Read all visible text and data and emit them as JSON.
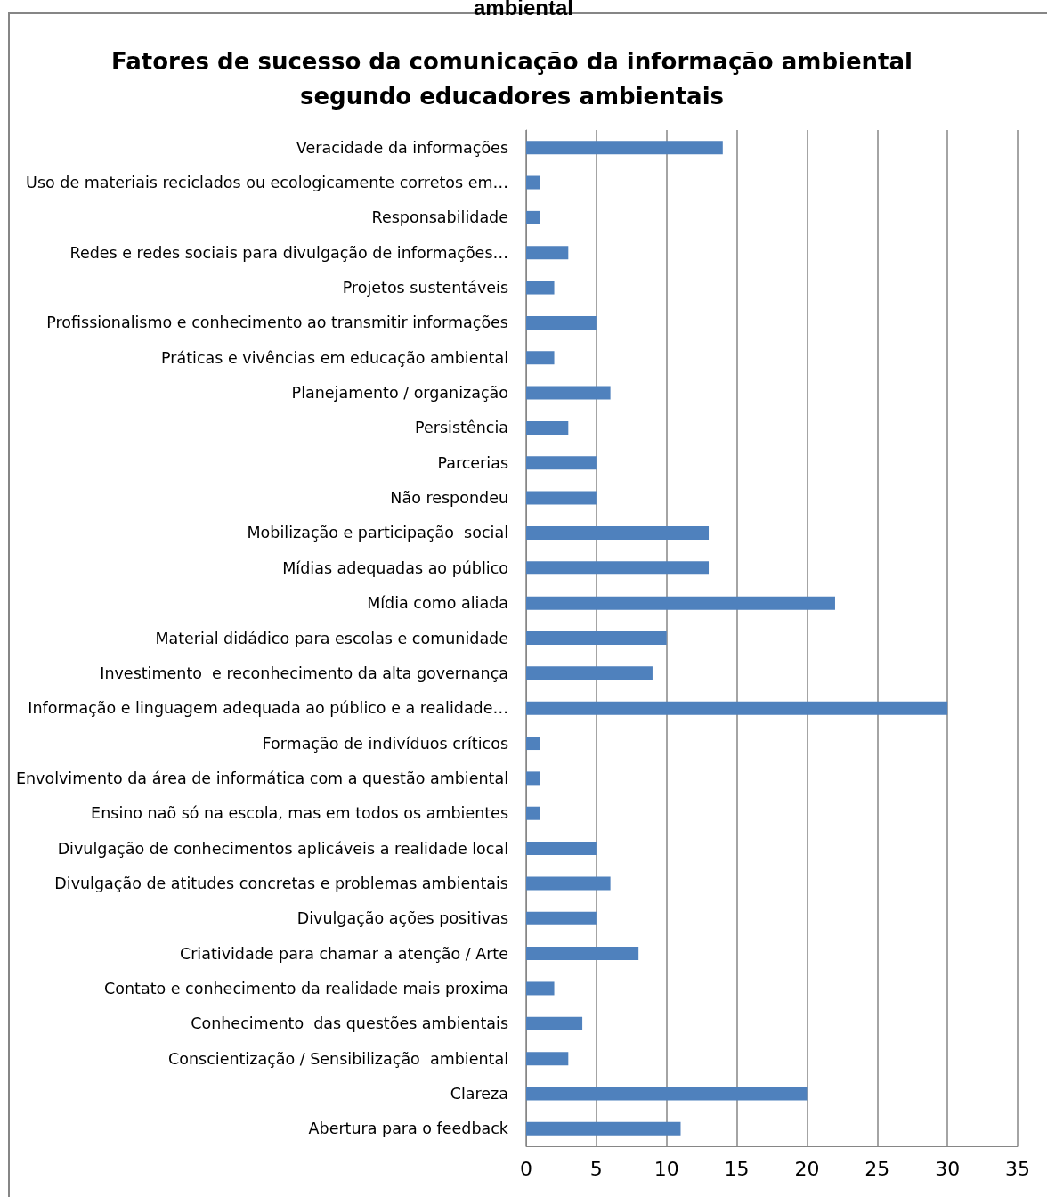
{
  "chart_data": {
    "type": "bar",
    "orientation": "horizontal",
    "title": "Fatores de sucesso da comunicação da informação ambiental\nsegundo educadores ambientais",
    "annotations": [
      "ambiental"
    ],
    "categories": [
      "Veracidade da informações",
      "Uso de materiais reciclados ou ecologicamente corretos em…",
      "Responsabilidade",
      "Redes e redes sociais para divulgação de informações…",
      "Projetos sustentáveis",
      "Profissionalismo e conhecimento ao transmitir informações",
      "Práticas e vivências em educação ambiental",
      "Planejamento / organização",
      "Persistência",
      "Parcerias",
      "Não respondeu",
      "Mobilização e participação  social",
      "Mídias adequadas ao público",
      "Mídia como aliada",
      "Material didádico para escolas e comunidade",
      "Investimento  e reconhecimento da alta governança",
      "Informação e linguagem adequada ao público e a realidade…",
      "Formação de indivíduos críticos",
      "Envolvimento da área de informática com a questão ambiental",
      "Ensino naõ só na escola, mas em todos os ambientes",
      "Divulgação de conhecimentos aplicáveis a realidade local",
      "Divulgação de atitudes concretas e problemas ambientais",
      "Divulgação ações positivas",
      "Criatividade para chamar a atenção / Arte",
      "Contato e conhecimento da realidade mais proxima",
      "Conhecimento  das questões ambientais",
      "Conscientização / Sensibilização  ambiental",
      "Clareza",
      "Abertura para o feedback"
    ],
    "values": [
      14,
      1,
      1,
      3,
      2,
      5,
      2,
      6,
      3,
      5,
      5,
      13,
      13,
      22,
      10,
      9,
      30,
      1,
      1,
      1,
      5,
      6,
      5,
      8,
      2,
      4,
      3,
      20,
      11
    ],
    "color": "#4f81bd",
    "xlim": [
      0,
      35
    ],
    "xticks": [
      0,
      5,
      10,
      15,
      20,
      25,
      30,
      35
    ],
    "grid": "x"
  }
}
